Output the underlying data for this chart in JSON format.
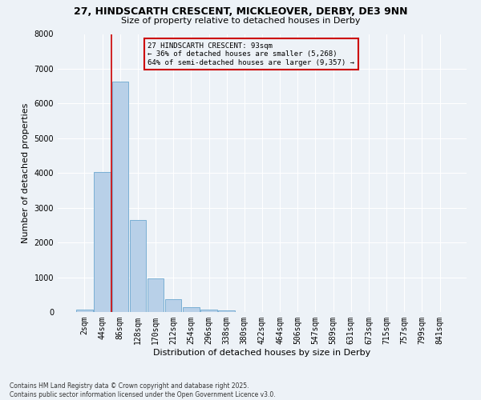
{
  "title_line1": "27, HINDSCARTH CRESCENT, MICKLEOVER, DERBY, DE3 9NN",
  "title_line2": "Size of property relative to detached houses in Derby",
  "categories": [
    "2sqm",
    "44sqm",
    "86sqm",
    "128sqm",
    "170sqm",
    "212sqm",
    "254sqm",
    "296sqm",
    "338sqm",
    "380sqm",
    "422sqm",
    "464sqm",
    "506sqm",
    "547sqm",
    "589sqm",
    "631sqm",
    "673sqm",
    "715sqm",
    "757sqm",
    "799sqm",
    "841sqm"
  ],
  "values": [
    60,
    4030,
    6620,
    2650,
    970,
    360,
    145,
    80,
    50,
    0,
    0,
    0,
    0,
    0,
    0,
    0,
    0,
    0,
    0,
    0,
    0
  ],
  "bar_color": "#b8d0e8",
  "bar_edge_color": "#7aafd4",
  "annotation_text_line1": "27 HINDSCARTH CRESCENT: 93sqm",
  "annotation_text_line2": "← 36% of detached houses are smaller (5,268)",
  "annotation_text_line3": "64% of semi-detached houses are larger (9,357) →",
  "ylabel": "Number of detached properties",
  "xlabel": "Distribution of detached houses by size in Derby",
  "ylim": [
    0,
    8000
  ],
  "yticks": [
    0,
    1000,
    2000,
    3000,
    4000,
    5000,
    6000,
    7000,
    8000
  ],
  "vline_color": "#cc0000",
  "vline_x": 1.5,
  "annotation_box_color": "#cc0000",
  "footer_line1": "Contains HM Land Registry data © Crown copyright and database right 2025.",
  "footer_line2": "Contains public sector information licensed under the Open Government Licence v3.0.",
  "bg_color": "#edf2f7",
  "grid_color": "#ffffff",
  "title_fontsize": 9,
  "subtitle_fontsize": 8,
  "ylabel_fontsize": 8,
  "xlabel_fontsize": 8,
  "tick_fontsize": 7,
  "annotation_fontsize": 6.5,
  "footer_fontsize": 5.5
}
